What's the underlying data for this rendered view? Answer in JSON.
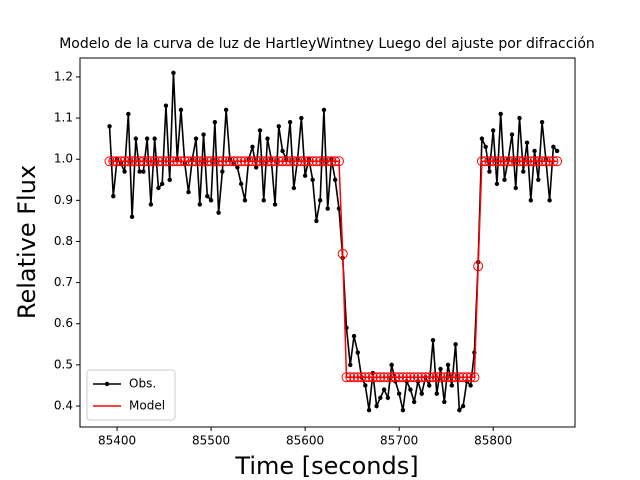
{
  "chart_data": {
    "type": "line",
    "title": "Modelo de la curva de luz de HartleyWintney Luego del ajuste por difracción",
    "x_label": "Time [seconds]",
    "y_label": "Relative Flux",
    "x": [
      85392,
      85396,
      85400,
      85404,
      85408,
      85412,
      85416,
      85420,
      85424,
      85428,
      85432,
      85436,
      85440,
      85444,
      85448,
      85452,
      85456,
      85460,
      85464,
      85468,
      85472,
      85476,
      85480,
      85484,
      85488,
      85492,
      85496,
      85500,
      85504,
      85508,
      85512,
      85516,
      85520,
      85524,
      85528,
      85532,
      85536,
      85540,
      85544,
      85548,
      85552,
      85556,
      85560,
      85564,
      85568,
      85572,
      85576,
      85580,
      85584,
      85588,
      85592,
      85596,
      85600,
      85604,
      85608,
      85612,
      85616,
      85620,
      85624,
      85628,
      85632,
      85636,
      85640,
      85644,
      85648,
      85652,
      85656,
      85660,
      85664,
      85668,
      85672,
      85676,
      85680,
      85684,
      85688,
      85692,
      85696,
      85700,
      85704,
      85708,
      85712,
      85716,
      85720,
      85724,
      85728,
      85732,
      85736,
      85740,
      85744,
      85748,
      85752,
      85756,
      85760,
      85764,
      85768,
      85772,
      85776,
      85780,
      85784,
      85788,
      85792,
      85796,
      85800,
      85804,
      85808,
      85812,
      85816,
      85820,
      85824,
      85828,
      85832,
      85836,
      85840,
      85844,
      85848,
      85852,
      85856,
      85860,
      85864,
      85868
    ],
    "series": [
      {
        "name": "Obs.",
        "color": "#000000",
        "values": [
          1.08,
          0.91,
          1.0,
          0.99,
          0.97,
          1.11,
          0.86,
          1.05,
          0.97,
          0.97,
          1.05,
          0.89,
          1.05,
          0.93,
          0.94,
          1.13,
          0.95,
          1.21,
          1.0,
          1.12,
          0.99,
          0.92,
          1.0,
          1.05,
          0.89,
          1.06,
          0.91,
          0.9,
          1.09,
          0.87,
          0.97,
          1.12,
          1.0,
          0.99,
          0.98,
          0.94,
          0.9,
          1.0,
          1.03,
          0.98,
          1.07,
          0.9,
          1.05,
          1.0,
          0.89,
          1.08,
          1.02,
          1.0,
          1.09,
          0.93,
          1.0,
          1.1,
          0.96,
          1.0,
          0.95,
          0.85,
          0.9,
          1.12,
          0.88,
          1.0,
          0.95,
          0.88,
          0.76,
          0.59,
          0.5,
          0.57,
          0.53,
          0.47,
          0.45,
          0.39,
          0.48,
          0.4,
          0.42,
          0.44,
          0.42,
          0.5,
          0.46,
          0.43,
          0.39,
          0.46,
          0.44,
          0.41,
          0.46,
          0.43,
          0.47,
          0.45,
          0.56,
          0.43,
          0.49,
          0.41,
          0.5,
          0.45,
          0.55,
          0.39,
          0.4,
          0.46,
          0.45,
          0.53,
          0.75,
          1.05,
          1.03,
          0.97,
          1.07,
          0.94,
          1.11,
          0.95,
          1.0,
          1.06,
          0.93,
          1.1,
          0.97,
          1.04,
          0.9,
          1.02,
          0.95,
          1.09,
          1.0,
          0.9,
          1.03,
          1.02
        ]
      },
      {
        "name": "Model",
        "color": "#ff0000",
        "values": [
          0.995,
          0.995,
          0.995,
          0.995,
          0.995,
          0.995,
          0.995,
          0.995,
          0.995,
          0.995,
          0.995,
          0.995,
          0.995,
          0.995,
          0.995,
          0.995,
          0.995,
          0.995,
          0.995,
          0.995,
          0.995,
          0.995,
          0.995,
          0.995,
          0.995,
          0.995,
          0.995,
          0.995,
          0.995,
          0.995,
          0.995,
          0.995,
          0.995,
          0.995,
          0.995,
          0.995,
          0.995,
          0.995,
          0.995,
          0.995,
          0.995,
          0.995,
          0.995,
          0.995,
          0.995,
          0.995,
          0.995,
          0.995,
          0.995,
          0.995,
          0.995,
          0.995,
          0.995,
          0.995,
          0.995,
          0.995,
          0.995,
          0.995,
          0.995,
          0.995,
          0.995,
          0.995,
          0.77,
          0.47,
          0.47,
          0.47,
          0.47,
          0.47,
          0.47,
          0.47,
          0.47,
          0.47,
          0.47,
          0.47,
          0.47,
          0.47,
          0.47,
          0.47,
          0.47,
          0.47,
          0.47,
          0.47,
          0.47,
          0.47,
          0.47,
          0.47,
          0.47,
          0.47,
          0.47,
          0.47,
          0.47,
          0.47,
          0.47,
          0.47,
          0.47,
          0.47,
          0.47,
          0.47,
          0.74,
          0.995,
          0.995,
          0.995,
          0.995,
          0.995,
          0.995,
          0.995,
          0.995,
          0.995,
          0.995,
          0.995,
          0.995,
          0.995,
          0.995,
          0.995,
          0.995,
          0.995,
          0.995,
          0.995,
          0.995,
          0.995
        ]
      }
    ],
    "xlim": [
      85360.6,
      85887
    ],
    "ylim": [
      0.349,
      1.246
    ],
    "xticks": [
      85400,
      85500,
      85600,
      85700,
      85800
    ],
    "yticks": [
      0.4,
      0.5,
      0.6,
      0.7,
      0.8,
      0.9,
      {
        "value": 1,
        "label": "1.0"
      },
      1.1,
      1.2
    ],
    "legend": "lower left"
  }
}
